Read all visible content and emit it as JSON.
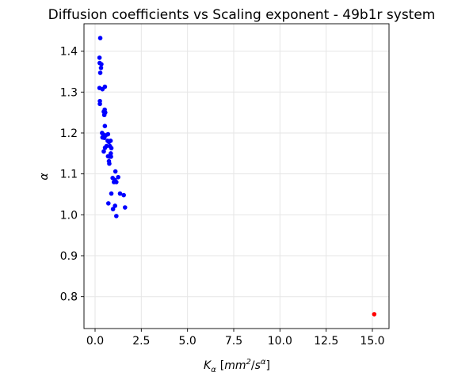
{
  "chart_data": {
    "type": "scatter",
    "title": "Diffusion coefficients vs Scaling exponent - 49b1r system",
    "xlabel_parts": {
      "main": "K",
      "main_sub": "α",
      "open": "[",
      "unit_a": "mm",
      "unit_a_sup": "2",
      "slash": "/",
      "unit_b": "s",
      "unit_b_sup": "α",
      "close": "]"
    },
    "ylabel": "α",
    "xlim": [
      -0.6,
      15.9
    ],
    "ylim": [
      0.722,
      1.467
    ],
    "xticks": [
      "0.0",
      "2.5",
      "5.0",
      "7.5",
      "10.0",
      "12.5",
      "15.0"
    ],
    "xtick_values": [
      0,
      2.5,
      5,
      7.5,
      10,
      12.5,
      15
    ],
    "yticks": [
      "0.8",
      "0.9",
      "1.0",
      "1.1",
      "1.2",
      "1.3",
      "1.4"
    ],
    "ytick_values": [
      0.8,
      0.9,
      1.0,
      1.1,
      1.2,
      1.3,
      1.4
    ],
    "grid": true,
    "series": [
      {
        "color": "#0000ff",
        "points": [
          [
            0.28,
            1.432
          ],
          [
            0.24,
            1.384
          ],
          [
            0.25,
            1.371
          ],
          [
            0.34,
            1.368
          ],
          [
            0.32,
            1.359
          ],
          [
            0.28,
            1.347
          ],
          [
            0.53,
            1.313
          ],
          [
            0.24,
            1.31
          ],
          [
            0.4,
            1.307
          ],
          [
            0.26,
            1.278
          ],
          [
            0.26,
            1.271
          ],
          [
            0.52,
            1.257
          ],
          [
            0.47,
            1.252
          ],
          [
            0.55,
            1.25
          ],
          [
            0.5,
            1.244
          ],
          [
            0.53,
            1.217
          ],
          [
            0.38,
            1.2
          ],
          [
            0.45,
            1.196
          ],
          [
            0.57,
            1.194
          ],
          [
            0.7,
            1.197
          ],
          [
            0.4,
            1.189
          ],
          [
            0.5,
            1.188
          ],
          [
            0.68,
            1.181
          ],
          [
            0.84,
            1.181
          ],
          [
            0.75,
            1.178
          ],
          [
            0.62,
            1.168
          ],
          [
            0.8,
            1.168
          ],
          [
            0.54,
            1.164
          ],
          [
            0.88,
            1.163
          ],
          [
            0.47,
            1.155
          ],
          [
            0.85,
            1.15
          ],
          [
            0.7,
            1.143
          ],
          [
            0.78,
            1.142
          ],
          [
            0.86,
            1.142
          ],
          [
            0.75,
            1.131
          ],
          [
            0.77,
            1.125
          ],
          [
            1.1,
            1.106
          ],
          [
            1.25,
            1.092
          ],
          [
            0.95,
            1.09
          ],
          [
            1.07,
            1.085
          ],
          [
            1.02,
            1.08
          ],
          [
            1.15,
            1.08
          ],
          [
            0.88,
            1.052
          ],
          [
            1.35,
            1.052
          ],
          [
            1.55,
            1.048
          ],
          [
            0.72,
            1.028
          ],
          [
            1.08,
            1.022
          ],
          [
            1.62,
            1.018
          ],
          [
            0.97,
            1.014
          ],
          [
            1.15,
            0.997
          ]
        ]
      },
      {
        "color": "#ff0000",
        "points": [
          [
            15.1,
            0.757
          ]
        ]
      }
    ]
  }
}
